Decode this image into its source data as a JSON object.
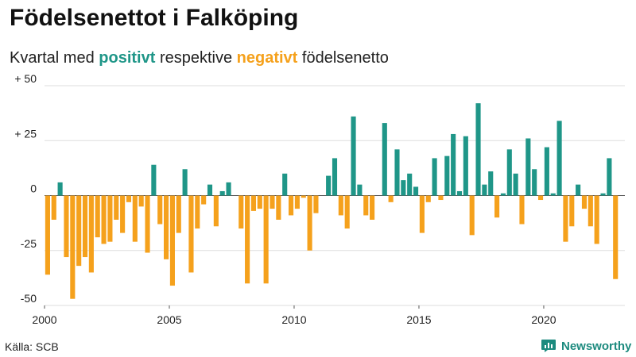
{
  "header": {
    "title": "Födelsenettot i Falköping",
    "subtitle_prefix": "Kvartal med ",
    "subtitle_positive": "positivt",
    "subtitle_middle": " respektive ",
    "subtitle_negative": "negativt",
    "subtitle_suffix": " födelsenetto"
  },
  "footer": {
    "source": "Källa: SCB",
    "brand": "Newsworthy",
    "brand_icon": "bar-chart-logo-icon"
  },
  "colors": {
    "positive": "#1f9688",
    "negative": "#f5a11c",
    "grid": "#dddddd",
    "zero_line": "#555555"
  },
  "chart_data": {
    "type": "bar",
    "grid": true,
    "ylim": [
      -50,
      50
    ],
    "y_ticks": [
      50,
      25,
      0,
      -25,
      -50
    ],
    "y_tick_labels": [
      "+ 50",
      "+ 25",
      "0",
      "-25",
      "-50"
    ],
    "x_range": [
      2000,
      2023.25
    ],
    "x_ticks": [
      2000,
      2005,
      2010,
      2015,
      2020
    ],
    "x_tick_labels": [
      "2000",
      "2005",
      "2010",
      "2015",
      "2020"
    ],
    "start_year": 2000,
    "periods_per_year": 4,
    "values": [
      -36,
      -11,
      6,
      -28,
      -47,
      -32,
      -28,
      -35,
      -19,
      -22,
      -21,
      -11,
      -17,
      -3,
      -21,
      -5,
      -26,
      14,
      -13,
      -29,
      -41,
      -17,
      12,
      -35,
      -15,
      -4,
      5,
      -14,
      2,
      6,
      0,
      -15,
      -40,
      -7,
      -6,
      -40,
      -6,
      -11,
      10,
      -9,
      -6,
      -1,
      -25,
      -8,
      0,
      9,
      17,
      -9,
      -15,
      36,
      5,
      -9,
      -11,
      0,
      33,
      -3,
      21,
      7,
      10,
      4,
      -17,
      -3,
      17,
      -2,
      18,
      28,
      2,
      27,
      -18,
      42,
      5,
      11,
      -10,
      1,
      21,
      10,
      -13,
      26,
      12,
      -2,
      22,
      1,
      34,
      -21,
      -14,
      5,
      -6,
      -14,
      -22,
      1,
      17,
      -38
    ]
  }
}
